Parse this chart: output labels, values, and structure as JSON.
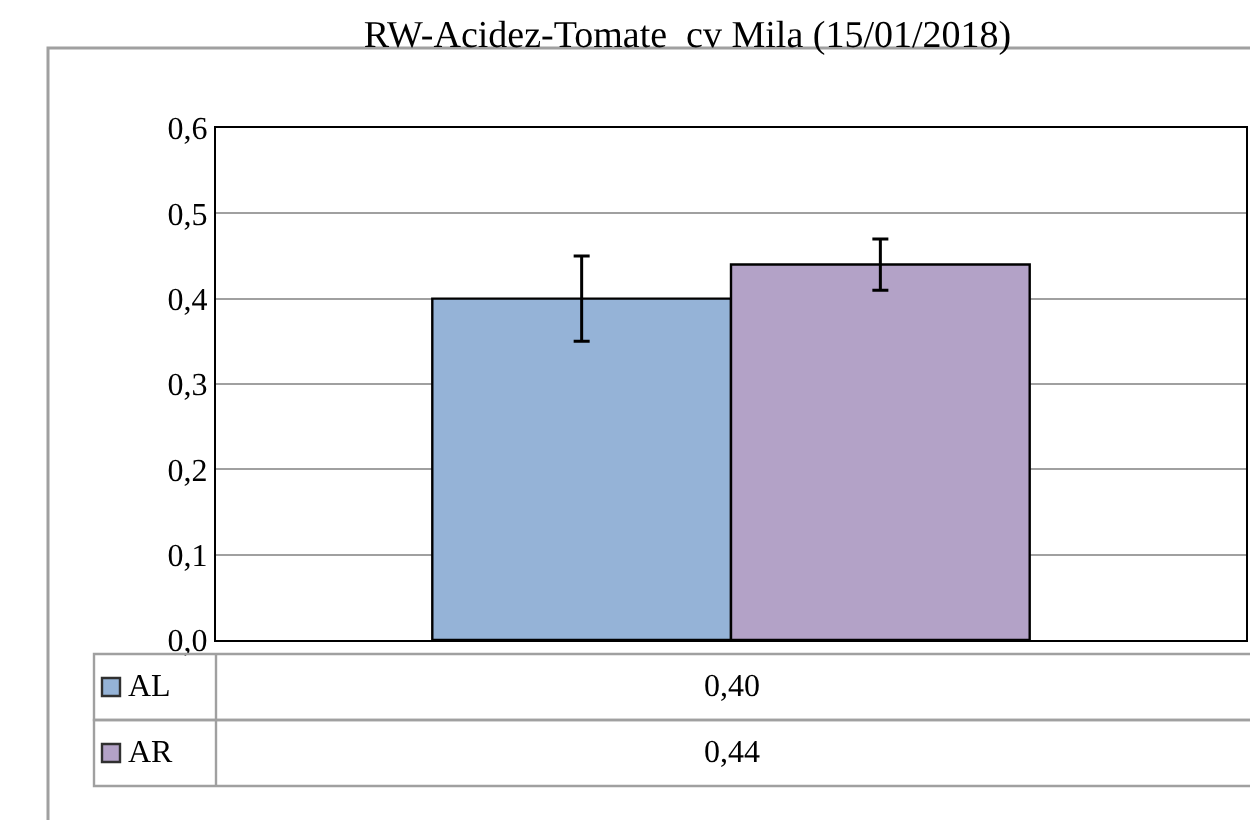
{
  "chart_data": {
    "type": "bar",
    "title": "RW-Acidez-Tomate  cv Mila (15/01/2018)",
    "categories": [
      null
    ],
    "series": [
      {
        "name": "AL",
        "color": "#95b3d7",
        "values": [
          0.4
        ],
        "errors": [
          0.05
        ],
        "value_labels": [
          "0,40"
        ]
      },
      {
        "name": "AR",
        "color": "#b3a2c7",
        "values": [
          0.44
        ],
        "errors": [
          0.03
        ],
        "value_labels": [
          "0,44"
        ]
      }
    ],
    "ylim": [
      0,
      0.6
    ],
    "yticks": [
      {
        "value": 0,
        "label": "0,0"
      },
      {
        "value": 0.1,
        "label": "0,1"
      },
      {
        "value": 0.2,
        "label": "0,2"
      },
      {
        "value": 0.3,
        "label": "0,3"
      },
      {
        "value": 0.4,
        "label": "0,4"
      },
      {
        "value": 0.5,
        "label": "0,5"
      },
      {
        "value": 0.6,
        "label": "0,6"
      }
    ],
    "grid": "y",
    "legend": "bottom"
  }
}
